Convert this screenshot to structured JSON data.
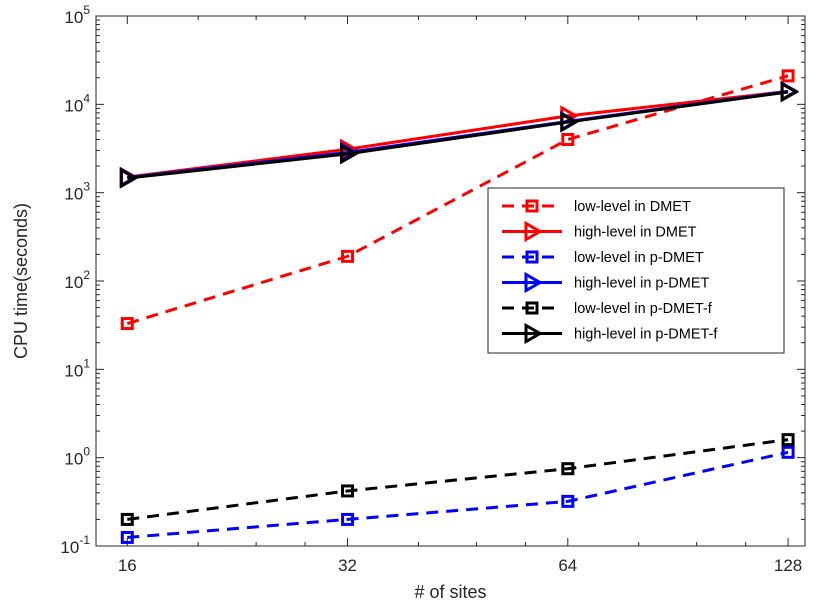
{
  "chart_data": {
    "type": "line",
    "title": "",
    "xlabel": "# of sites",
    "ylabel": "CPU time(seconds)",
    "x_scale": "log2",
    "y_scale": "log10",
    "x": [
      16,
      32,
      64,
      128
    ],
    "xlim": [
      14.5,
      135
    ],
    "ylim": [
      0.1,
      100000
    ],
    "x_ticks": [
      "16",
      "32",
      "64",
      "128"
    ],
    "y_ticks": [
      {
        "base": "10",
        "exp": "-1",
        "value": 0.1
      },
      {
        "base": "10",
        "exp": "0",
        "value": 1
      },
      {
        "base": "10",
        "exp": "1",
        "value": 10
      },
      {
        "base": "10",
        "exp": "2",
        "value": 100
      },
      {
        "base": "10",
        "exp": "3",
        "value": 1000
      },
      {
        "base": "10",
        "exp": "4",
        "value": 10000
      },
      {
        "base": "10",
        "exp": "5",
        "value": 100000
      }
    ],
    "legend_position": "center-right",
    "grid": false,
    "series": [
      {
        "name": "low-level in DMET",
        "values": [
          33,
          190,
          4000,
          21000
        ],
        "color": "#ff0000",
        "dash": true,
        "marker": "square"
      },
      {
        "name": "high-level in DMET",
        "values": [
          1500,
          3100,
          7400,
          14000
        ],
        "color": "#ff0000",
        "dash": false,
        "marker": "triangle-right"
      },
      {
        "name": "low-level in p-DMET",
        "values": [
          0.125,
          0.2,
          0.32,
          1.15
        ],
        "color": "#0000ff",
        "dash": true,
        "marker": "square"
      },
      {
        "name": "high-level in p-DMET",
        "values": [
          1480,
          2850,
          6400,
          14000
        ],
        "color": "#0000ff",
        "dash": false,
        "marker": "triangle-right"
      },
      {
        "name": "low-level in p-DMET-f",
        "values": [
          0.2,
          0.42,
          0.75,
          1.6
        ],
        "color": "#000000",
        "dash": true,
        "marker": "square"
      },
      {
        "name": "high-level in p-DMET-f",
        "values": [
          1460,
          2750,
          6300,
          13800
        ],
        "color": "#000000",
        "dash": false,
        "marker": "triangle-right"
      }
    ]
  }
}
